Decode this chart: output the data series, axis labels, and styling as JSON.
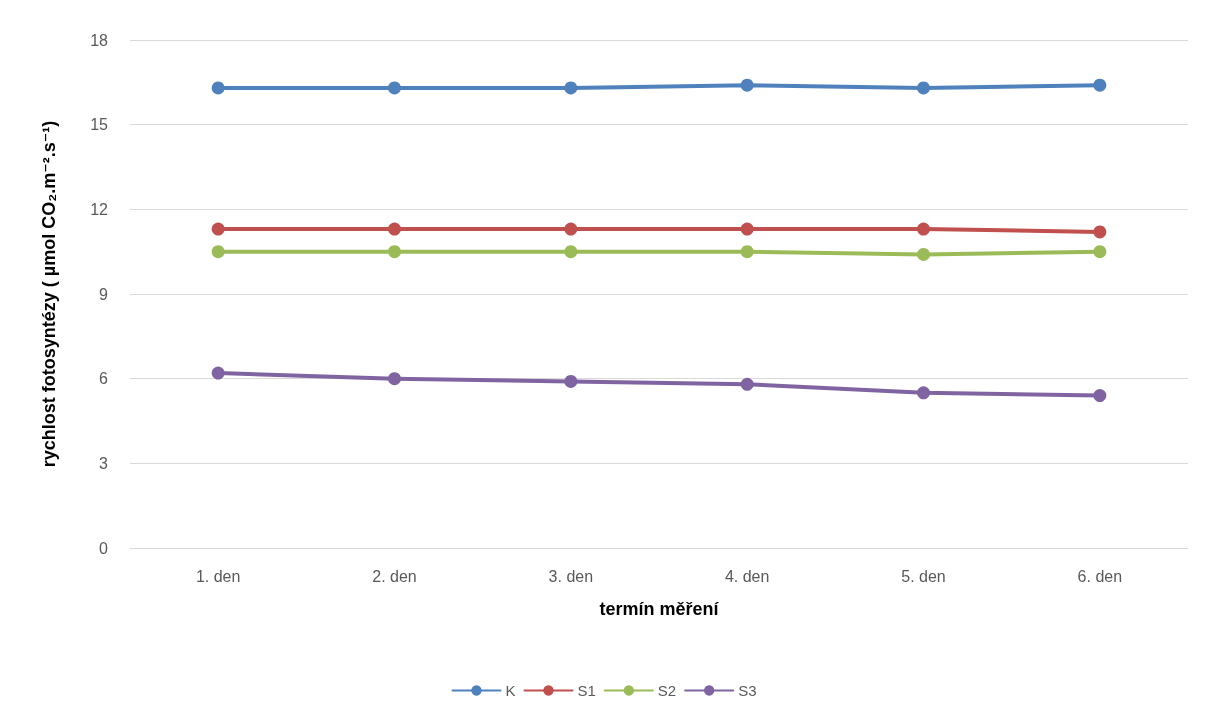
{
  "chart_data": {
    "type": "line",
    "xlabel": "termín měření",
    "ylabel": "rychlost fotosyntézy ( µmol CO₂.m⁻².s⁻¹)",
    "categories": [
      "1. den",
      "2. den",
      "3. den",
      "4. den",
      "5. den",
      "6. den"
    ],
    "series": [
      {
        "name": "K",
        "color": "#4f81bd",
        "values": [
          16.3,
          16.3,
          16.3,
          16.4,
          16.3,
          16.4
        ]
      },
      {
        "name": "S1",
        "color": "#c0504d",
        "values": [
          11.3,
          11.3,
          11.3,
          11.3,
          11.3,
          11.2
        ]
      },
      {
        "name": "S2",
        "color": "#9bbb59",
        "values": [
          10.5,
          10.5,
          10.5,
          10.5,
          10.4,
          10.5
        ]
      },
      {
        "name": "S3",
        "color": "#8064a2",
        "values": [
          6.2,
          6.0,
          5.9,
          5.8,
          5.5,
          5.4
        ]
      }
    ],
    "ylim": [
      0,
      18
    ],
    "yticks": [
      0,
      3,
      6,
      9,
      12,
      15,
      18
    ],
    "grid": "y",
    "legend": "bottom",
    "marker": "circle",
    "line_style": "solid"
  }
}
